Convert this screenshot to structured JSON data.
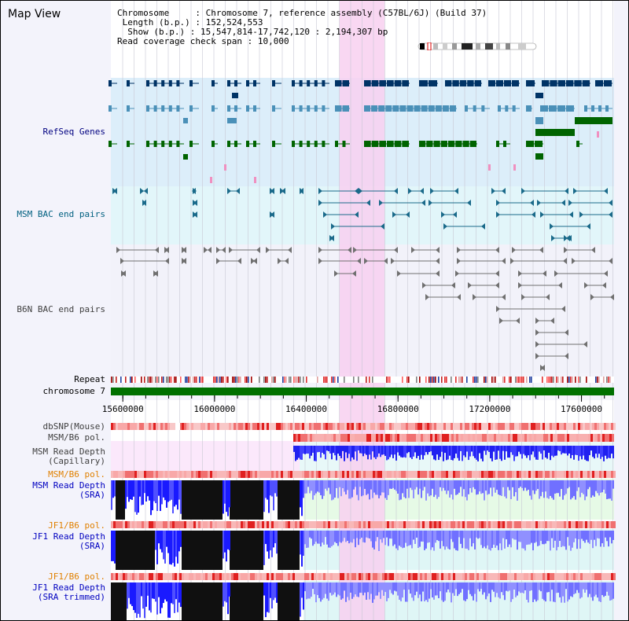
{
  "title": "Map View",
  "info": {
    "chromosome_key": "Chromosome",
    "chromosome_val": "Chromosome 7, reference assembly (C57BL/6J) (Build 37)",
    "length_key": "Length (b.p.)",
    "length_val": "152,524,553",
    "show_key": "Show (b.p.)",
    "show_val": "15,547,814-17,742,120 : 2,194,307 bp",
    "span_key": "Read coverage check span",
    "span_val": "10,000"
  },
  "tracks": {
    "refseq": "RefSeq Genes",
    "msm_bac": "MSM BAC end pairs",
    "b6n_bac": "B6N BAC end pairs",
    "repeat": "Repeat",
    "chromosome": "chromosome 7",
    "dbsnp": "dbSNP(Mouse)",
    "msm_b6_pol_1": "MSM/B6 pol.",
    "msm_depth_cap_1": "MSM Read Depth",
    "msm_depth_cap_2": "(Capillary)",
    "msm_b6_pol_2": "MSM/B6 pol.",
    "msm_depth_sra_1": "MSM Read Depth",
    "msm_depth_sra_2": "(SRA)",
    "jf1_b6_pol_1": "JF1/B6 pol.",
    "jf1_depth_sra_1": "JF1 Read Depth",
    "jf1_depth_sra_2": "(SRA)",
    "jf1_b6_pol_2": "JF1/B6 pol.",
    "jf1_depth_trim_1": "JF1 Read Depth",
    "jf1_depth_trim_2": "(SRA trimmed)"
  },
  "axis": {
    "ticks": [
      "15600000",
      "16000000",
      "16400000",
      "16800000",
      "17200000",
      "17600000"
    ],
    "range": [
      15547814,
      17742120
    ]
  },
  "colors": {
    "refseq_label": "#000080",
    "msm_bac_label": "#006080",
    "b6n_bac_label": "#404040",
    "pol_orange": "#e08000",
    "depth_blue": "#0000c0",
    "highlight": "#f8d0f0",
    "chromosome_bar": "#007000"
  }
}
